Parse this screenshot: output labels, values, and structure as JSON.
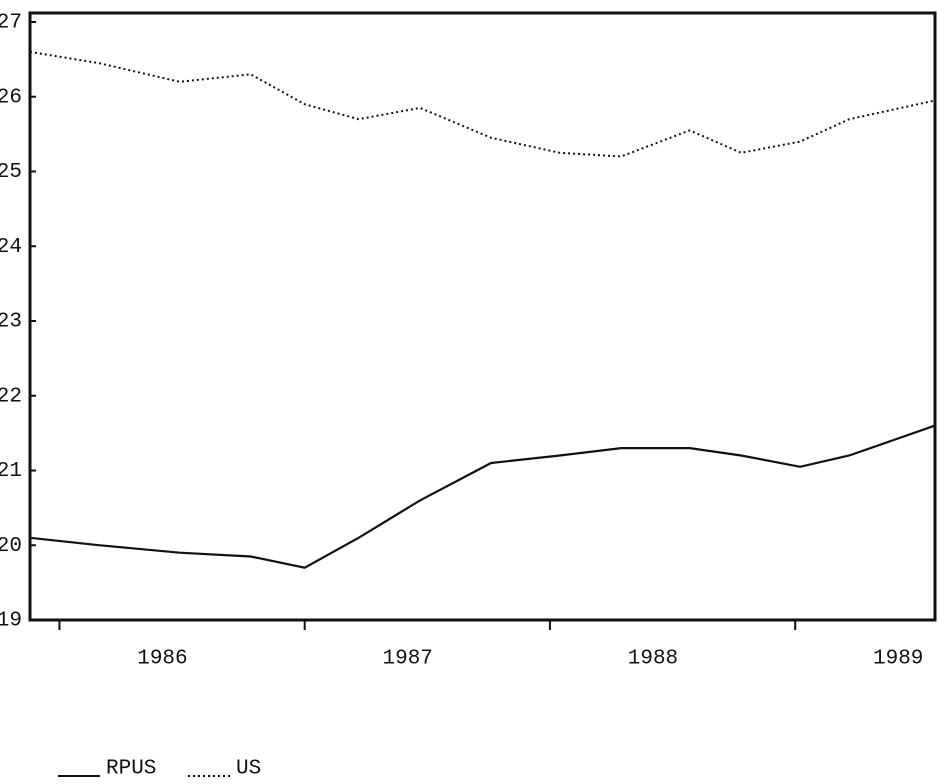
{
  "chart_data": {
    "type": "line",
    "x": [
      1985.88,
      1986.16,
      1986.49,
      1986.78,
      1987.0,
      1987.22,
      1987.47,
      1987.76,
      1988.04,
      1988.29,
      1988.57,
      1988.78,
      1989.02,
      1989.22,
      1989.57
    ],
    "series": [
      {
        "name": "RPUS",
        "color": "#111111",
        "dash": "solid",
        "values": [
          20.1,
          20.0,
          19.9,
          19.85,
          19.7,
          20.1,
          20.6,
          21.1,
          21.2,
          21.3,
          21.3,
          21.2,
          21.05,
          21.2,
          21.6
        ]
      },
      {
        "name": "US",
        "color": "#111111",
        "dash": "dotted",
        "values": [
          26.6,
          26.45,
          26.2,
          26.3,
          25.9,
          25.7,
          25.85,
          25.45,
          25.25,
          25.2,
          25.55,
          25.25,
          25.4,
          25.7,
          25.95
        ]
      }
    ],
    "xlim": [
      1985.88,
      1989.57
    ],
    "xticks": [
      1986,
      1987,
      1988,
      1989
    ],
    "ylim": [
      19,
      27.12
    ],
    "yticks": [
      19,
      20,
      21,
      22,
      23,
      24,
      25,
      26,
      27
    ],
    "legend": "bottom-left",
    "grid": false
  }
}
